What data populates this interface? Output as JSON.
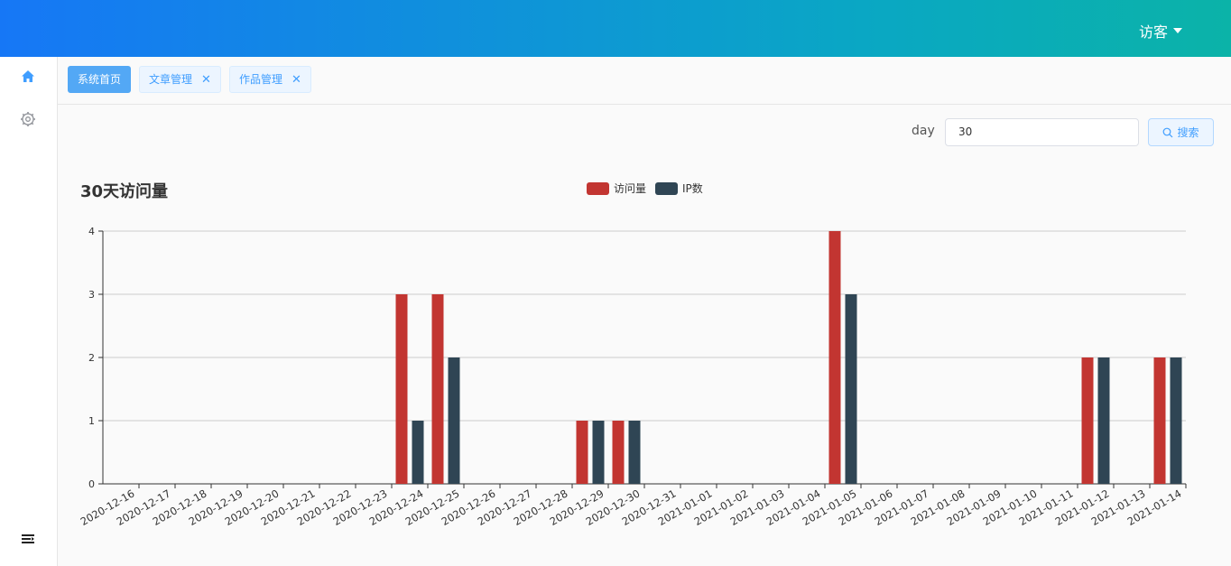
{
  "header": {
    "user_label": "访客"
  },
  "sidebar": {
    "items": [
      {
        "icon": "home-icon"
      },
      {
        "icon": "gear-icon"
      }
    ],
    "toggle_icon": "menu-fold-icon"
  },
  "tabs": [
    {
      "label": "系统首页",
      "active": true,
      "closable": false
    },
    {
      "label": "文章管理",
      "active": false,
      "closable": true
    },
    {
      "label": "作品管理",
      "active": false,
      "closable": true
    }
  ],
  "search": {
    "label": "day",
    "value": "30",
    "button_label": "搜索"
  },
  "colors": {
    "visits": "#c23531",
    "ips": "#2f4554",
    "accent": "#409eff"
  },
  "chart_data": {
    "type": "bar",
    "title": "30天访问量",
    "categories": [
      "2020-12-16",
      "2020-12-17",
      "2020-12-18",
      "2020-12-19",
      "2020-12-20",
      "2020-12-21",
      "2020-12-22",
      "2020-12-23",
      "2020-12-24",
      "2020-12-25",
      "2020-12-26",
      "2020-12-27",
      "2020-12-28",
      "2020-12-29",
      "2020-12-30",
      "2020-12-31",
      "2021-01-01",
      "2021-01-02",
      "2021-01-03",
      "2021-01-04",
      "2021-01-05",
      "2021-01-06",
      "2021-01-07",
      "2021-01-08",
      "2021-01-09",
      "2021-01-10",
      "2021-01-11",
      "2021-01-12",
      "2021-01-13",
      "2021-01-14"
    ],
    "series": [
      {
        "name": "访问量",
        "values": [
          0,
          0,
          0,
          0,
          0,
          0,
          0,
          0,
          3,
          3,
          0,
          0,
          0,
          1,
          1,
          0,
          0,
          0,
          0,
          0,
          4,
          0,
          0,
          0,
          0,
          0,
          0,
          2,
          0,
          2
        ]
      },
      {
        "name": "IP数",
        "values": [
          0,
          0,
          0,
          0,
          0,
          0,
          0,
          0,
          1,
          2,
          0,
          0,
          0,
          1,
          1,
          0,
          0,
          0,
          0,
          0,
          3,
          0,
          0,
          0,
          0,
          0,
          0,
          2,
          0,
          2
        ]
      }
    ],
    "ylim": [
      0,
      4
    ],
    "yticks": [
      "0",
      "1",
      "2",
      "3",
      "4"
    ],
    "grid": true,
    "legend_position": "top"
  }
}
